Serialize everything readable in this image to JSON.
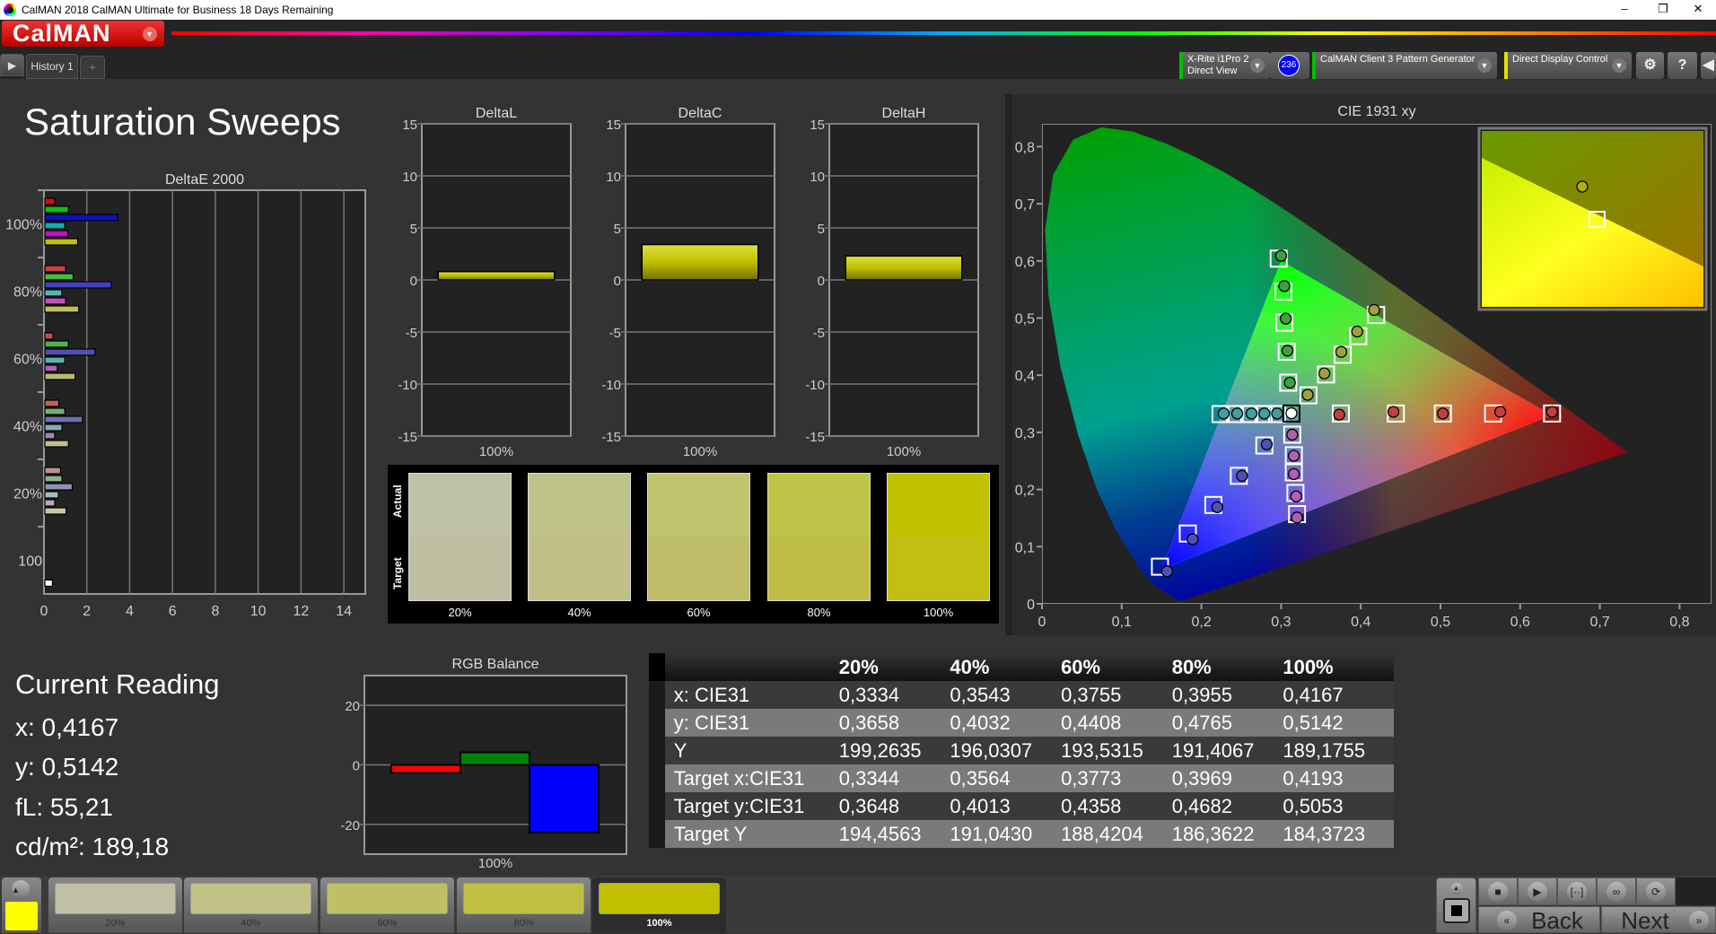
{
  "window": {
    "title": "CalMAN 2018 CalMAN Ultimate for Business 18 Days Remaining",
    "controls": [
      "–",
      "❐",
      "✕"
    ]
  },
  "app": {
    "logo": "CalMAN",
    "tabs": [
      {
        "label": "History 1"
      }
    ],
    "add_tab": "+"
  },
  "toolbar": {
    "meter": {
      "line1": "X-Rite i1Pro 2",
      "line2": "Direct View",
      "badge": "236",
      "accent": "#00c000",
      "badge_color": "#0000ff"
    },
    "source": {
      "label": "CalMAN Client 3 Pattern Generator",
      "accent": "#00c000"
    },
    "display": {
      "label": "Direct Display Control",
      "accent": "#e0e000"
    },
    "settings_icon": "gear-icon",
    "help_label": "?",
    "collapse_icon": "chevron-left-icon"
  },
  "page": {
    "title": "Saturation Sweeps"
  },
  "current_reading": {
    "title": "Current Reading",
    "x": "x: 0,4167",
    "y": "y: 0,5142",
    "fl": "fL: 55,21",
    "cdm2": "cd/m²: 189,18"
  },
  "swatches": {
    "actual_label": "Actual",
    "target_label": "Target",
    "items": [
      {
        "label": "20%",
        "actual": "#c0c2a6",
        "target": "#c0bfa2"
      },
      {
        "label": "40%",
        "actual": "#c0c388",
        "target": "#c1bf85"
      },
      {
        "label": "60%",
        "actual": "#c0c46c",
        "target": "#c0bd69"
      },
      {
        "label": "80%",
        "actual": "#bfc448",
        "target": "#c0bd46"
      },
      {
        "label": "100%",
        "actual": "#c0c200",
        "target": "#c2be12"
      }
    ]
  },
  "table": {
    "headers": [
      "",
      "20%",
      "40%",
      "60%",
      "80%",
      "100%"
    ],
    "rows": [
      [
        "x: CIE31",
        "0,3334",
        "0,3543",
        "0,3755",
        "0,3955",
        "0,4167"
      ],
      [
        "y: CIE31",
        "0,3658",
        "0,4032",
        "0,4408",
        "0,4765",
        "0,5142"
      ],
      [
        "Y",
        "199,2635",
        "196,0307",
        "193,5315",
        "191,4067",
        "189,1755"
      ],
      [
        "Target x:CIE31",
        "0,3344",
        "0,3564",
        "0,3773",
        "0,3969",
        "0,4193"
      ],
      [
        "Target y:CIE31",
        "0,3648",
        "0,4013",
        "0,4358",
        "0,4682",
        "0,5053"
      ],
      [
        "Target Y",
        "194,4563",
        "191,0430",
        "188,4204",
        "186,3622",
        "184,3723"
      ]
    ]
  },
  "bottom_bar": {
    "current_color": "#ffff00",
    "items": [
      {
        "label": "20%",
        "color": "#c0c0a6"
      },
      {
        "label": "40%",
        "color": "#c1c286"
      },
      {
        "label": "60%",
        "color": "#bfc066"
      },
      {
        "label": "80%",
        "color": "#c0c144"
      },
      {
        "label": "100%",
        "color": "#c0c000",
        "selected": true
      }
    ],
    "back_label": "Back",
    "next_label": "Next",
    "controls": [
      "stop-icon",
      "play-icon",
      "bracket-icon",
      "loop-icon",
      "refresh-icon"
    ]
  },
  "chart_data": [
    {
      "type": "bar",
      "orientation": "horizontal",
      "title": "DeltaE 2000",
      "categories": [
        "100%",
        "80%",
        "60%",
        "40%",
        "20%",
        "100"
      ],
      "xlim": [
        0,
        15
      ],
      "xticks": [
        "0",
        "2",
        "4",
        "6",
        "8",
        "10",
        "12",
        "14"
      ],
      "grid": true,
      "series": [
        {
          "color": "red",
          "values": [
            0.46,
            0.97,
            0.38,
            0.65,
            0.73,
            null
          ],
          "colors": [
            "#d01010",
            "#c84040",
            "#c05050",
            "#c06060",
            "#c09090"
          ]
        },
        {
          "color": "green",
          "values": [
            1.1,
            1.32,
            1.1,
            0.93,
            0.8,
            null
          ],
          "colors": [
            "#10c010",
            "#40c040",
            "#50b050",
            "#70b070",
            "#90b090"
          ]
        },
        {
          "color": "blue",
          "values": [
            3.4,
            3.1,
            2.34,
            1.75,
            1.28,
            null
          ],
          "colors": [
            "#1010c0",
            "#4040c0",
            "#5050b0",
            "#7070b0",
            "#9090b8"
          ]
        },
        {
          "color": "cyan",
          "values": [
            0.93,
            0.79,
            0.93,
            0.8,
            0.63,
            null
          ],
          "colors": [
            "#10b0b0",
            "#50b8b8",
            "#60b0b0",
            "#80b0b0",
            "#a0c0c0"
          ]
        },
        {
          "color": "magenta",
          "values": [
            1.07,
            0.97,
            0.58,
            0.46,
            0.46,
            null
          ],
          "colors": [
            "#c010c0",
            "#c050c0",
            "#b060b0",
            "#b080b0",
            "#c0a0c0"
          ]
        },
        {
          "color": "yellow",
          "values": [
            1.53,
            1.58,
            1.41,
            1.1,
            0.99,
            null
          ],
          "colors": [
            "#c0c010",
            "#c0c050",
            "#b8b870",
            "#c0c090",
            "#c8c8a8"
          ]
        },
        {
          "color": "white",
          "values": [
            null,
            null,
            null,
            null,
            null,
            0.35
          ],
          "colors": [
            "#ffffff",
            "#ffffff",
            "#ffffff",
            "#ffffff",
            "#ffffff",
            "#ffffff"
          ]
        }
      ]
    },
    {
      "type": "bar",
      "title": "DeltaL",
      "categories": [
        "100%"
      ],
      "values": [
        0.8
      ],
      "ylim": [
        -15,
        15
      ],
      "yticks": [
        "15",
        "10",
        "5",
        "0",
        "-5",
        "-10",
        "-15"
      ],
      "color": "#c0c000"
    },
    {
      "type": "bar",
      "title": "DeltaC",
      "categories": [
        "100%"
      ],
      "values": [
        3.4
      ],
      "ylim": [
        -15,
        15
      ],
      "yticks": [
        "15",
        "10",
        "5",
        "0",
        "-5",
        "-10",
        "-15"
      ],
      "color": "#c0c000"
    },
    {
      "type": "bar",
      "title": "DeltaH",
      "categories": [
        "100%"
      ],
      "values": [
        2.3
      ],
      "ylim": [
        -15,
        15
      ],
      "yticks": [
        "15",
        "10",
        "5",
        "0",
        "-5",
        "-10",
        "-15"
      ],
      "color": "#c0c000"
    },
    {
      "type": "bar",
      "title": "RGB Balance",
      "categories": [
        "100%"
      ],
      "ylim": [
        -30,
        30
      ],
      "yticks": [
        "20",
        "0",
        "-20"
      ],
      "series": [
        {
          "color": "#ff0000",
          "values": [
            -2.7
          ]
        },
        {
          "color": "#008000",
          "values": [
            4.2
          ]
        },
        {
          "color": "#0000ff",
          "values": [
            -22.7
          ]
        }
      ]
    },
    {
      "type": "scatter",
      "title": "CIE 1931 xy",
      "xlim": [
        0,
        0.84
      ],
      "ylim": [
        0,
        0.84
      ],
      "xticks": [
        "0",
        "0,1",
        "0,2",
        "0,3",
        "0,4",
        "0,5",
        "0,6",
        "0,7",
        "0,8"
      ],
      "yticks": [
        "0",
        "0,1",
        "0,2",
        "0,3",
        "0,4",
        "0,5",
        "0,6",
        "0,7",
        "0,8"
      ],
      "gamut": {
        "red": [
          0.64,
          0.33
        ],
        "green": [
          0.3,
          0.6
        ],
        "blue": [
          0.15,
          0.06
        ]
      },
      "white": {
        "target": [
          0.313,
          0.333
        ],
        "measured": [
          0.313,
          0.3335
        ]
      },
      "series": [
        {
          "color": "red",
          "marker_color": "#c04040",
          "target_x": [
            0.375,
            0.444,
            0.503,
            0.566,
            0.64
          ],
          "target_y": [
            0.333,
            0.333,
            0.333,
            0.333,
            0.333
          ],
          "measured_x": [
            0.373,
            0.441,
            0.503,
            0.575,
            0.64
          ],
          "measured_y": [
            0.331,
            0.336,
            0.333,
            0.336,
            0.336
          ]
        },
        {
          "color": "green",
          "marker_color": "#40a040",
          "target_x": [
            0.309,
            0.307,
            0.304,
            0.303,
            0.297
          ],
          "target_y": [
            0.387,
            0.441,
            0.492,
            0.546,
            0.604
          ],
          "measured_x": [
            0.311,
            0.308,
            0.306,
            0.304,
            0.3
          ],
          "measured_y": [
            0.387,
            0.443,
            0.499,
            0.556,
            0.609
          ]
        },
        {
          "color": "blue",
          "marker_color": "#5050b0",
          "target_x": [
            0.279,
            0.247,
            0.215,
            0.183,
            0.148
          ],
          "target_y": [
            0.277,
            0.224,
            0.173,
            0.123,
            0.065
          ],
          "measured_x": [
            0.282,
            0.251,
            0.22,
            0.189,
            0.157
          ],
          "measured_y": [
            0.279,
            0.224,
            0.169,
            0.113,
            0.057
          ]
        },
        {
          "color": "cyan",
          "marker_color": "#40a0a0",
          "target_x": [
            0.295,
            0.278,
            0.26,
            0.242,
            0.224
          ],
          "target_y": [
            0.332,
            0.332,
            0.332,
            0.332,
            0.332
          ],
          "measured_x": [
            0.295,
            0.279,
            0.263,
            0.245,
            0.228
          ],
          "measured_y": [
            0.333,
            0.333,
            0.333,
            0.333,
            0.333
          ]
        },
        {
          "color": "magenta",
          "marker_color": "#b060b0",
          "target_x": [
            0.314,
            0.316,
            0.316,
            0.318,
            0.32
          ],
          "target_y": [
            0.296,
            0.26,
            0.23,
            0.194,
            0.157
          ],
          "measured_x": [
            0.314,
            0.316,
            0.316,
            0.319,
            0.32
          ],
          "measured_y": [
            0.296,
            0.259,
            0.227,
            0.188,
            0.151
          ]
        },
        {
          "color": "yellow",
          "marker_color": "#a0a040",
          "target_x": [
            0.3344,
            0.3564,
            0.3773,
            0.3969,
            0.4193
          ],
          "target_y": [
            0.3648,
            0.4013,
            0.4358,
            0.4682,
            0.5053
          ],
          "measured_x": [
            0.3334,
            0.3543,
            0.3755,
            0.3955,
            0.4167
          ],
          "measured_y": [
            0.3658,
            0.4032,
            0.4408,
            0.4765,
            0.5142
          ]
        }
      ]
    }
  ]
}
